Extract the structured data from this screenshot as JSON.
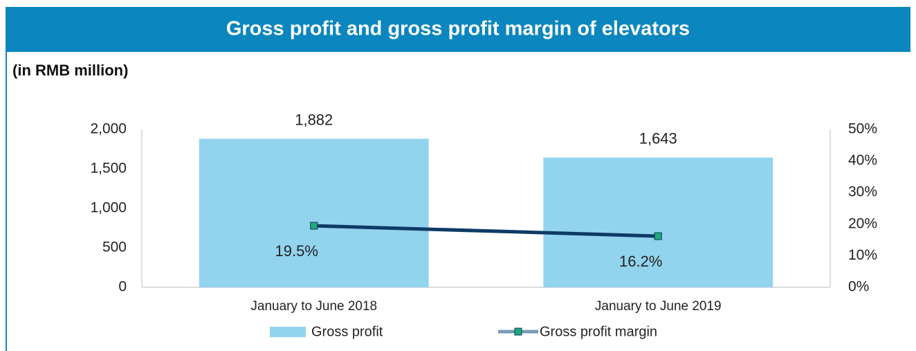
{
  "chart_data": {
    "type": "bar",
    "title": "Gross profit and gross profit margin of elevators",
    "subtitle": "(in RMB million)",
    "categories": [
      "January to June 2018",
      "January to June 2019"
    ],
    "series": [
      {
        "name": "Gross profit",
        "type": "bar",
        "color": "#92d3ee",
        "values": [
          1882,
          1643
        ],
        "value_labels": [
          "1,882",
          "1,643"
        ]
      },
      {
        "name": "Gross profit margin",
        "type": "line",
        "axis": "y2",
        "color": "#0e3a66",
        "marker_color": "#1faa78",
        "values": [
          19.5,
          16.2
        ],
        "value_labels": [
          "19.5%",
          "16.2%"
        ]
      }
    ],
    "ylim": [
      0,
      2000
    ],
    "yticks": [
      0,
      500,
      {
        "value": 1000,
        "label": "1,000"
      },
      {
        "value": 1500,
        "label": "1,500"
      },
      {
        "value": 2000,
        "label": "2,000"
      }
    ],
    "y2lim": [
      0,
      50
    ],
    "y2ticks": [
      {
        "value": 0,
        "label": "0%"
      },
      {
        "value": 10,
        "label": "10%"
      },
      {
        "value": 20,
        "label": "20%"
      },
      {
        "value": 30,
        "label": "30%"
      },
      {
        "value": 40,
        "label": "40%"
      },
      {
        "value": 50,
        "label": "50%"
      }
    ],
    "legend": "bottom"
  }
}
